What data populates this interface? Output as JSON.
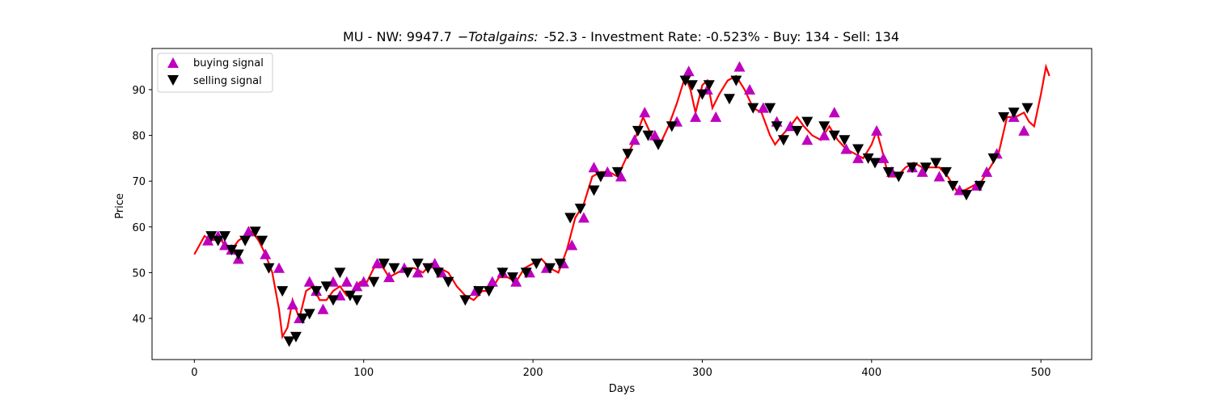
{
  "chart_data": {
    "type": "line",
    "title_prefix": "MU - NW: 9947.7",
    "title_math": "−Totalgains:",
    "title_suffix": "-52.3 - Investment Rate: -0.523% - Buy: 134 - Sell: 134",
    "xlabel": "Days",
    "ylabel": "Price",
    "xlim": [
      -25,
      530
    ],
    "ylim": [
      31,
      99
    ],
    "xticks": [
      0,
      100,
      200,
      300,
      400,
      500
    ],
    "yticks": [
      40,
      50,
      60,
      70,
      80,
      90
    ],
    "grid": false,
    "legend_position": "top-left",
    "colors": {
      "price": "#ff0000",
      "buy": "#bf00bf",
      "sell": "#000000"
    },
    "series": [
      {
        "name": "price",
        "x": [
          0,
          3,
          6,
          10,
          14,
          18,
          22,
          26,
          30,
          34,
          38,
          42,
          46,
          50,
          52,
          55,
          58,
          62,
          66,
          70,
          74,
          78,
          82,
          86,
          90,
          94,
          98,
          102,
          106,
          110,
          115,
          120,
          125,
          130,
          135,
          140,
          145,
          150,
          155,
          160,
          165,
          170,
          175,
          180,
          185,
          190,
          195,
          200,
          205,
          210,
          215,
          220,
          225,
          230,
          235,
          240,
          245,
          250,
          255,
          260,
          265,
          270,
          275,
          280,
          285,
          290,
          293,
          296,
          300,
          303,
          306,
          310,
          315,
          320,
          325,
          330,
          335,
          340,
          343,
          347,
          352,
          356,
          360,
          365,
          370,
          375,
          380,
          385,
          390,
          395,
          400,
          403,
          406,
          410,
          415,
          420,
          425,
          430,
          435,
          440,
          445,
          450,
          455,
          460,
          465,
          470,
          475,
          480,
          485,
          490,
          493,
          496,
          500,
          503,
          505
        ],
        "y": [
          54,
          56,
          58,
          57,
          58,
          56,
          55,
          57,
          58,
          59,
          57,
          54,
          50,
          42,
          36,
          38,
          44,
          40,
          46,
          47,
          44,
          44,
          46,
          47,
          45,
          46,
          48,
          48,
          51,
          52,
          49,
          50,
          51,
          51,
          50,
          52,
          51,
          50,
          47,
          45,
          44,
          46,
          46,
          49,
          49,
          48,
          51,
          52,
          53,
          51,
          50,
          55,
          62,
          65,
          71,
          72,
          72,
          71,
          75,
          79,
          84,
          80,
          78,
          82,
          87,
          93,
          90,
          85,
          91,
          92,
          86,
          89,
          92,
          93,
          90,
          86,
          85,
          80,
          78,
          80,
          82,
          84,
          82,
          80,
          79,
          82,
          79,
          77,
          76,
          75,
          78,
          81,
          77,
          71,
          71,
          73,
          74,
          73,
          73,
          73,
          71,
          68,
          68,
          69,
          70,
          73,
          76,
          84,
          84,
          85,
          83,
          82,
          89,
          95,
          93
        ]
      }
    ],
    "buy_signals": {
      "name": "buying signal",
      "x": [
        8,
        14,
        18,
        22,
        26,
        32,
        42,
        50,
        58,
        62,
        68,
        72,
        76,
        82,
        86,
        90,
        96,
        100,
        108,
        115,
        124,
        132,
        142,
        146,
        166,
        176,
        182,
        190,
        198,
        208,
        218,
        223,
        230,
        236,
        244,
        252,
        260,
        266,
        272,
        285,
        292,
        296,
        303,
        308,
        322,
        328,
        336,
        344,
        352,
        362,
        372,
        378,
        385,
        392,
        403,
        407,
        412,
        424,
        430,
        440,
        452,
        462,
        468,
        474,
        484,
        490
      ],
      "y": [
        57,
        58,
        56,
        55,
        53,
        59,
        54,
        51,
        43,
        40,
        48,
        46,
        42,
        48,
        45,
        48,
        47,
        48,
        52,
        49,
        51,
        50,
        52,
        50,
        46,
        48,
        50,
        48,
        50,
        51,
        52,
        56,
        62,
        73,
        72,
        71,
        79,
        85,
        80,
        83,
        94,
        84,
        90,
        84,
        95,
        90,
        86,
        83,
        82,
        79,
        80,
        85,
        77,
        75,
        81,
        75,
        72,
        73,
        72,
        71,
        68,
        69,
        72,
        76,
        84,
        81
      ]
    },
    "sell_signals": {
      "name": "selling signal",
      "x": [
        10,
        14,
        18,
        22,
        26,
        30,
        36,
        40,
        44,
        52,
        56,
        60,
        64,
        68,
        72,
        78,
        82,
        86,
        92,
        96,
        106,
        112,
        118,
        126,
        132,
        138,
        144,
        150,
        160,
        168,
        174,
        182,
        188,
        196,
        202,
        210,
        216,
        222,
        228,
        236,
        240,
        250,
        256,
        262,
        268,
        274,
        282,
        290,
        294,
        300,
        304,
        316,
        320,
        330,
        340,
        344,
        348,
        356,
        362,
        372,
        378,
        384,
        392,
        398,
        402,
        410,
        416,
        424,
        432,
        438,
        444,
        448,
        456,
        464,
        472,
        478,
        484,
        492
      ],
      "y": [
        58,
        57,
        58,
        55,
        54,
        57,
        59,
        57,
        51,
        46,
        35,
        36,
        40,
        41,
        46,
        47,
        44,
        50,
        45,
        44,
        48,
        52,
        51,
        50,
        52,
        51,
        50,
        48,
        44,
        46,
        46,
        50,
        49,
        50,
        52,
        51,
        52,
        62,
        64,
        68,
        71,
        72,
        76,
        81,
        80,
        78,
        82,
        92,
        91,
        89,
        91,
        88,
        92,
        86,
        86,
        82,
        79,
        81,
        83,
        82,
        80,
        79,
        77,
        75,
        74,
        72,
        71,
        73,
        73,
        74,
        72,
        69,
        67,
        69,
        75,
        84,
        85,
        86
      ]
    }
  }
}
